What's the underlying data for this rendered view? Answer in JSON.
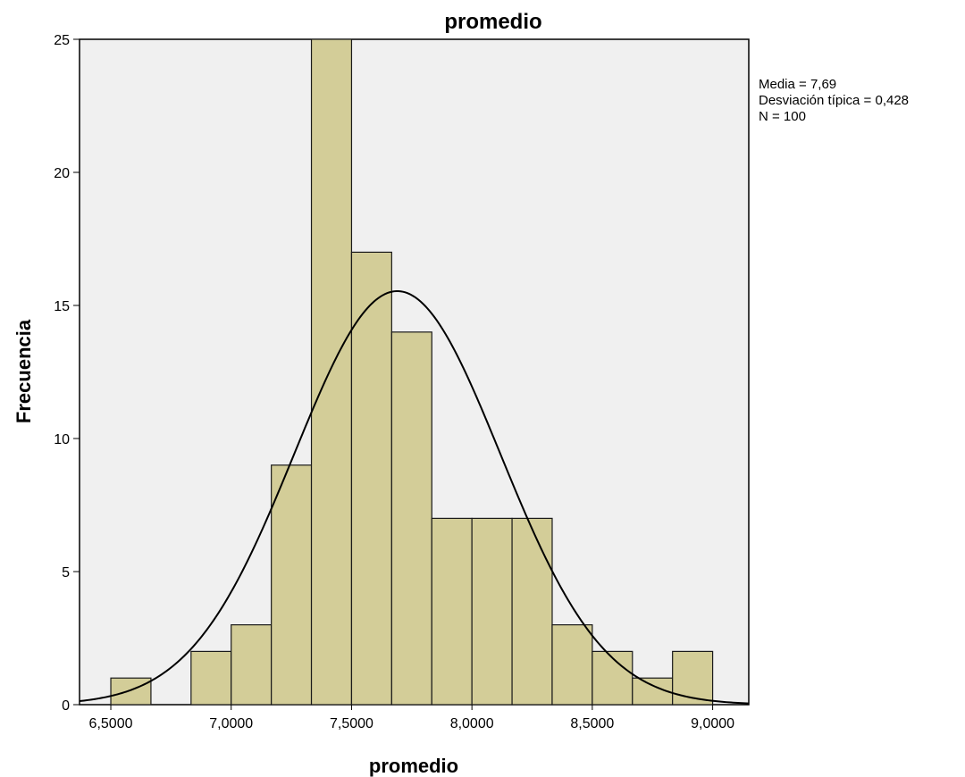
{
  "chart_data": {
    "type": "bar",
    "title": "promedio",
    "xlabel": "promedio",
    "ylabel": "Frecuencia",
    "xlim": [
      6.37,
      9.15
    ],
    "ylim": [
      0,
      25
    ],
    "x_ticks": [
      6.5,
      7.0,
      7.5,
      8.0,
      8.5,
      9.0
    ],
    "x_tick_labels": [
      "6,5000",
      "7,0000",
      "7,5000",
      "8,0000",
      "8,5000",
      "9,0000"
    ],
    "y_ticks": [
      0,
      5,
      10,
      15,
      20,
      25
    ],
    "y_tick_labels": [
      "0",
      "5",
      "10",
      "15",
      "20",
      "25"
    ],
    "bin_width": 0.1667,
    "bins": [
      {
        "start": 6.5,
        "count": 1
      },
      {
        "start": 6.6667,
        "count": 0
      },
      {
        "start": 6.8333,
        "count": 2
      },
      {
        "start": 7.0,
        "count": 3
      },
      {
        "start": 7.1667,
        "count": 9
      },
      {
        "start": 7.3333,
        "count": 25
      },
      {
        "start": 7.5,
        "count": 17
      },
      {
        "start": 7.6667,
        "count": 14
      },
      {
        "start": 7.8333,
        "count": 7
      },
      {
        "start": 8.0,
        "count": 7
      },
      {
        "start": 8.1667,
        "count": 7
      },
      {
        "start": 8.3333,
        "count": 3
      },
      {
        "start": 8.5,
        "count": 2
      },
      {
        "start": 8.6667,
        "count": 1
      },
      {
        "start": 8.8333,
        "count": 2
      }
    ],
    "normal_curve": {
      "mean": 7.69,
      "sd": 0.428,
      "n": 100
    },
    "stats": {
      "mean_text": "Media = 7,69",
      "sd_text": "Desviación típica = 0,428",
      "n_text": "N = 100"
    },
    "grid": false,
    "legend": "top-right",
    "colors": {
      "bar_fill": "#d3cd98",
      "bar_stroke": "#1a1a1a",
      "plot_bg": "#f0f0f0",
      "curve": "#000000"
    }
  }
}
